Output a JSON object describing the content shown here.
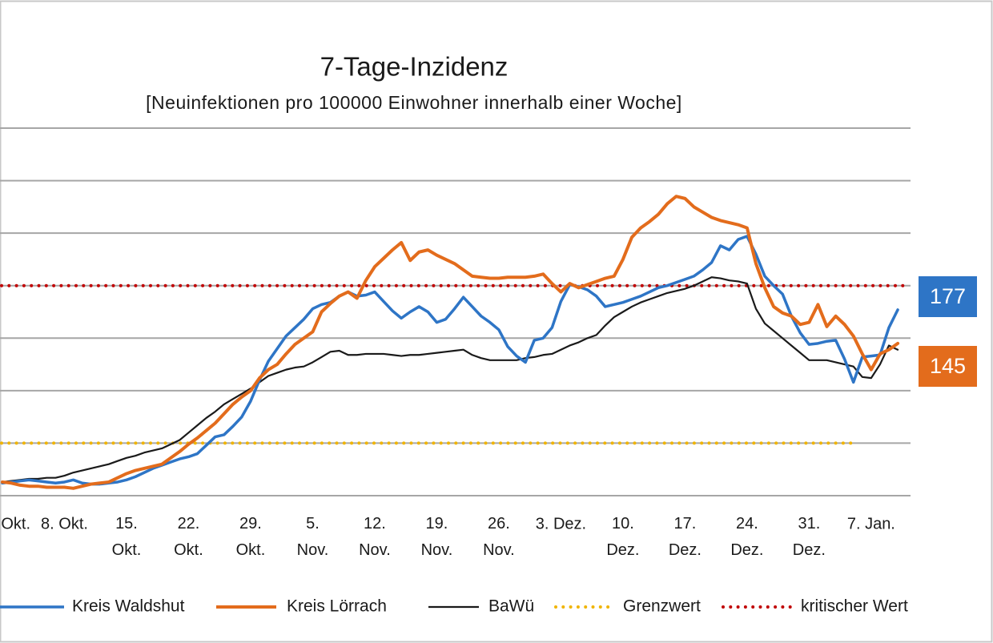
{
  "chart_data": {
    "type": "line",
    "title": "7-Tage-Inzidenz",
    "subtitle": "[Neuinfektionen pro 100000 Einwohner innerhalb einer Woche]",
    "categories": [
      "Okt.",
      null,
      null,
      null,
      null,
      null,
      null,
      "8. Okt.",
      null,
      null,
      null,
      null,
      null,
      null,
      "15. Okt.",
      null,
      null,
      null,
      null,
      null,
      null,
      "22. Okt.",
      null,
      null,
      null,
      null,
      null,
      null,
      "29. Okt.",
      null,
      null,
      null,
      null,
      null,
      null,
      "5. Nov.",
      null,
      null,
      null,
      null,
      null,
      null,
      "12. Nov.",
      null,
      null,
      null,
      null,
      null,
      null,
      "19. Nov.",
      null,
      null,
      null,
      null,
      null,
      null,
      "26. Nov.",
      null,
      null,
      null,
      null,
      null,
      null,
      "3. Dez.",
      null,
      null,
      null,
      null,
      null,
      null,
      "10. Dez.",
      null,
      null,
      null,
      null,
      null,
      null,
      "17. Dez.",
      null,
      null,
      null,
      null,
      null,
      null,
      "24. Dez.",
      null,
      null,
      null,
      null,
      null,
      null,
      "31. Dez.",
      null,
      null,
      null,
      null,
      null,
      null,
      "7. Jan.",
      null,
      null,
      null
    ],
    "series": [
      {
        "name": "Kreis Waldshut",
        "color": "#2e75c6",
        "values": [
          12,
          13,
          14,
          15,
          14,
          13,
          12,
          13,
          15,
          12,
          11,
          11,
          12,
          13,
          15,
          18,
          22,
          26,
          29,
          32,
          35,
          37,
          40,
          48,
          56,
          58,
          66,
          75,
          90,
          110,
          128,
          140,
          152,
          160,
          168,
          178,
          182,
          184,
          190,
          194,
          190,
          191,
          194,
          185,
          176,
          169,
          175,
          180,
          175,
          165,
          168,
          178,
          189,
          180,
          171,
          165,
          158,
          142,
          133,
          127,
          148,
          150,
          160,
          185,
          201,
          199,
          196,
          190,
          180,
          182,
          184,
          187,
          190,
          194,
          198,
          200,
          203,
          206,
          209,
          215,
          222,
          238,
          234,
          244,
          247,
          230,
          209,
          200,
          192,
          171,
          155,
          144,
          145,
          147,
          148,
          130,
          108,
          132,
          133,
          134,
          160,
          177
        ]
      },
      {
        "name": "Kreis Lörrach",
        "color": "#e36c1c",
        "values": [
          13,
          12,
          10,
          9,
          9,
          8,
          8,
          8,
          7,
          9,
          11,
          12,
          13,
          17,
          21,
          24,
          26,
          28,
          30,
          36,
          42,
          49,
          55,
          62,
          69,
          78,
          87,
          94,
          100,
          112,
          120,
          125,
          135,
          144,
          150,
          156,
          175,
          183,
          190,
          194,
          188,
          205,
          218,
          226,
          234,
          241,
          224,
          232,
          234,
          229,
          225,
          221,
          215,
          209,
          208,
          207,
          207,
          208,
          208,
          208,
          209,
          211,
          202,
          194,
          202,
          198,
          201,
          204,
          207,
          209,
          225,
          246,
          255,
          261,
          268,
          278,
          285,
          283,
          275,
          270,
          265,
          262,
          260,
          258,
          255,
          221,
          198,
          180,
          174,
          171,
          163,
          165,
          182,
          161,
          171,
          163,
          152,
          135,
          120,
          135,
          139,
          145
        ]
      },
      {
        "name": "BaWü",
        "color": "#1a1a1a",
        "values": [
          13,
          14,
          15,
          16,
          16,
          17,
          17,
          19,
          22,
          24,
          26,
          28,
          30,
          33,
          36,
          38,
          41,
          43,
          45,
          49,
          53,
          60,
          67,
          74,
          80,
          87,
          92,
          97,
          102,
          108,
          114,
          117,
          120,
          122,
          123,
          127,
          132,
          137,
          138,
          134,
          134,
          135,
          135,
          135,
          134,
          133,
          134,
          134,
          135,
          136,
          137,
          138,
          139,
          134,
          131,
          129,
          129,
          129,
          129,
          131,
          132,
          134,
          135,
          139,
          143,
          146,
          150,
          153,
          162,
          170,
          175,
          180,
          184,
          187,
          190,
          193,
          195,
          197,
          200,
          204,
          208,
          207,
          205,
          204,
          202,
          178,
          164,
          157,
          150,
          143,
          136,
          129,
          129,
          129,
          127,
          125,
          123,
          113,
          112,
          125,
          143,
          139
        ]
      }
    ],
    "reference_lines": [
      {
        "name": "Grenzwert",
        "value": 50,
        "color": "#f0b400"
      },
      {
        "name": "kritischer Wert",
        "value": 200,
        "color": "#c00000"
      }
    ],
    "ylim": [
      0,
      350
    ],
    "yticks": [
      0,
      50,
      100,
      150,
      200,
      250,
      300,
      350
    ],
    "grid": true,
    "legend": "bottom"
  }
}
